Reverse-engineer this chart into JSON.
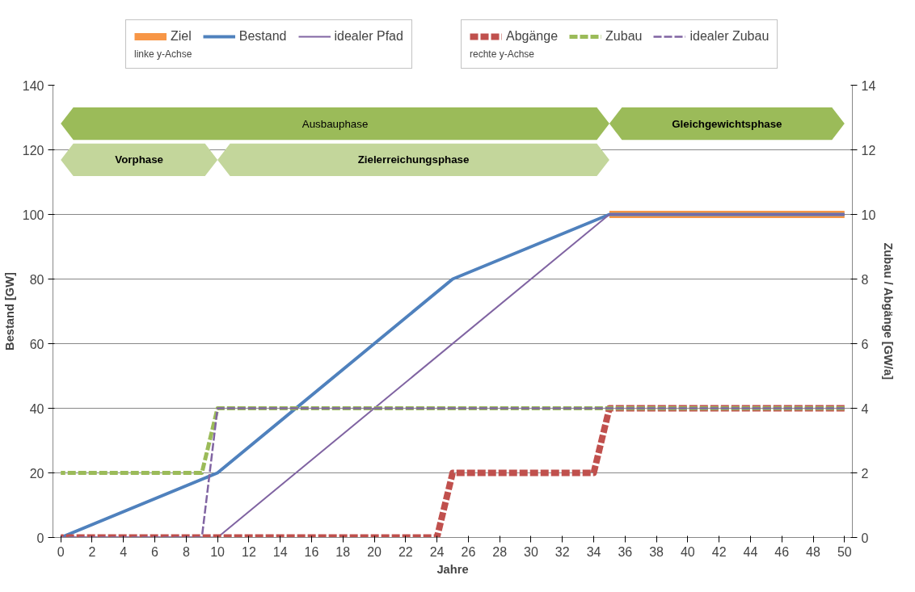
{
  "chart_data": {
    "type": "line",
    "xlabel": "Jahre",
    "ylabel": "Bestand [GW]",
    "y2label": "Zubau / Abgänge [GW/a]",
    "xlim": [
      -0.5,
      50.5
    ],
    "xticks": [
      0,
      2,
      4,
      6,
      8,
      10,
      12,
      14,
      16,
      18,
      20,
      22,
      24,
      26,
      28,
      30,
      32,
      34,
      36,
      38,
      40,
      42,
      44,
      46,
      48,
      50
    ],
    "ylim": [
      0,
      140
    ],
    "yticks": [
      0,
      20,
      40,
      60,
      80,
      100,
      120,
      140
    ],
    "y2lim": [
      0,
      14
    ],
    "y2ticks": [
      0,
      2,
      4,
      6,
      8,
      10,
      12,
      14
    ],
    "grid": "y",
    "legend": "top",
    "marker": "none",
    "series": [
      {
        "name": "Ziel",
        "color": "#f79646",
        "x": [
          35,
          50
        ],
        "values": [
          100,
          100
        ],
        "line_style": "solid"
      },
      {
        "name": "Bestand",
        "color": "#4f81bd",
        "x": [
          0,
          10,
          25,
          35,
          50
        ],
        "values": [
          0,
          20,
          80,
          100,
          100
        ],
        "line_style": "solid"
      },
      {
        "name": "idealer Pfad",
        "color": "#8064a2",
        "x": [
          0,
          10,
          35,
          50
        ],
        "values": [
          0,
          0,
          100,
          100
        ],
        "line_style": "solid"
      },
      {
        "name": "Abgänge",
        "color": "#c0504d",
        "axis": "y2",
        "x": [
          0,
          24,
          25,
          34,
          35,
          50
        ],
        "values": [
          0,
          0,
          2,
          2,
          4,
          4
        ],
        "line_style": "dashed"
      },
      {
        "name": "Zubau",
        "color": "#9bbb59",
        "axis": "y2",
        "x": [
          0,
          9,
          10,
          50
        ],
        "values": [
          2,
          2,
          4,
          4
        ],
        "line_style": "dashed"
      },
      {
        "name": "idealer Zubau",
        "color": "#8064a2",
        "axis": "y2",
        "x": [
          0,
          9,
          10,
          50
        ],
        "values": [
          0,
          0,
          4,
          4
        ],
        "line_style": "dashed"
      }
    ],
    "bands": [
      {
        "axis": "x",
        "from": 0,
        "to": 35,
        "label": "Ausbauphase",
        "color": "#9bbb59"
      },
      {
        "axis": "x",
        "from": 35,
        "to": 50,
        "label": "Gleichgewichtsphase",
        "color": "#9bbb59"
      },
      {
        "axis": "x",
        "from": 0,
        "to": 10,
        "label": "Vorphase",
        "color": "#c3d69b"
      },
      {
        "axis": "x",
        "from": 10,
        "to": 35,
        "label": "Zielerreichungsphase",
        "color": "#c3d69b"
      }
    ],
    "annotations": [
      "linke y-Achse",
      "rechte y-Achse"
    ]
  }
}
